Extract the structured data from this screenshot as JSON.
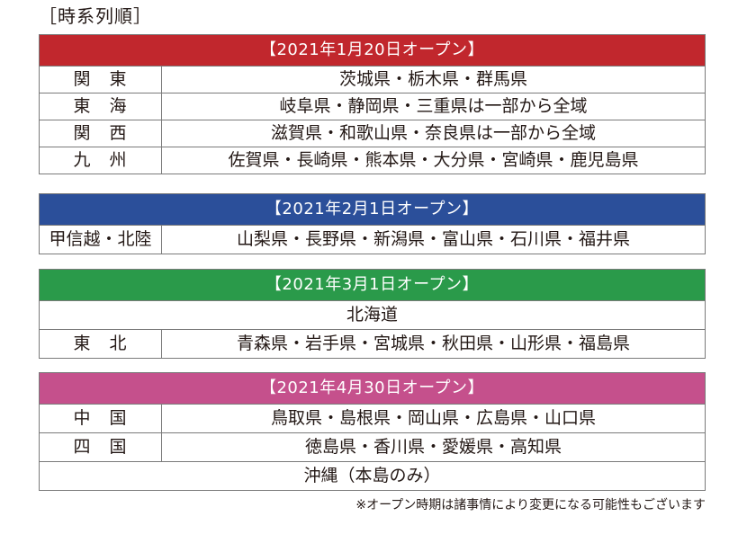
{
  "title": "［時系列順］",
  "colors": {
    "jan": "#c1272d",
    "feb": "#2b4f9a",
    "mar": "#2a9a4a",
    "apr": "#c5508c"
  },
  "sections": [
    {
      "header": "【2021年1月20日オープン】",
      "rows": [
        {
          "region": "関　東",
          "prefectures": "茨城県・栃木県・群馬県"
        },
        {
          "region": "東　海",
          "prefectures": "岐阜県・静岡県・三重県は一部から全域"
        },
        {
          "region": "関　西",
          "prefectures": "滋賀県・和歌山県・奈良県は一部から全域"
        },
        {
          "region": "九　州",
          "prefectures": "佐賀県・長崎県・熊本県・大分県・宮崎県・鹿児島県"
        }
      ]
    },
    {
      "header": "【2021年2月1日オープン】",
      "rows": [
        {
          "region": "甲信越・北陸",
          "prefectures": "山梨県・長野県・新潟県・富山県・石川県・福井県"
        }
      ]
    },
    {
      "header": "【2021年3月1日オープン】",
      "full_row": "北海道",
      "rows": [
        {
          "region": "東　北",
          "prefectures": "青森県・岩手県・宮城県・秋田県・山形県・福島県"
        }
      ]
    },
    {
      "header": "【2021年4月30日オープン】",
      "rows": [
        {
          "region": "中　国",
          "prefectures": "鳥取県・島根県・岡山県・広島県・山口県"
        },
        {
          "region": "四　国",
          "prefectures": "徳島県・香川県・愛媛県・高知県"
        }
      ],
      "full_row": "沖縄（本島のみ）"
    }
  ],
  "footnote": "※オープン時期は諸事情により変更になる可能性もございます"
}
